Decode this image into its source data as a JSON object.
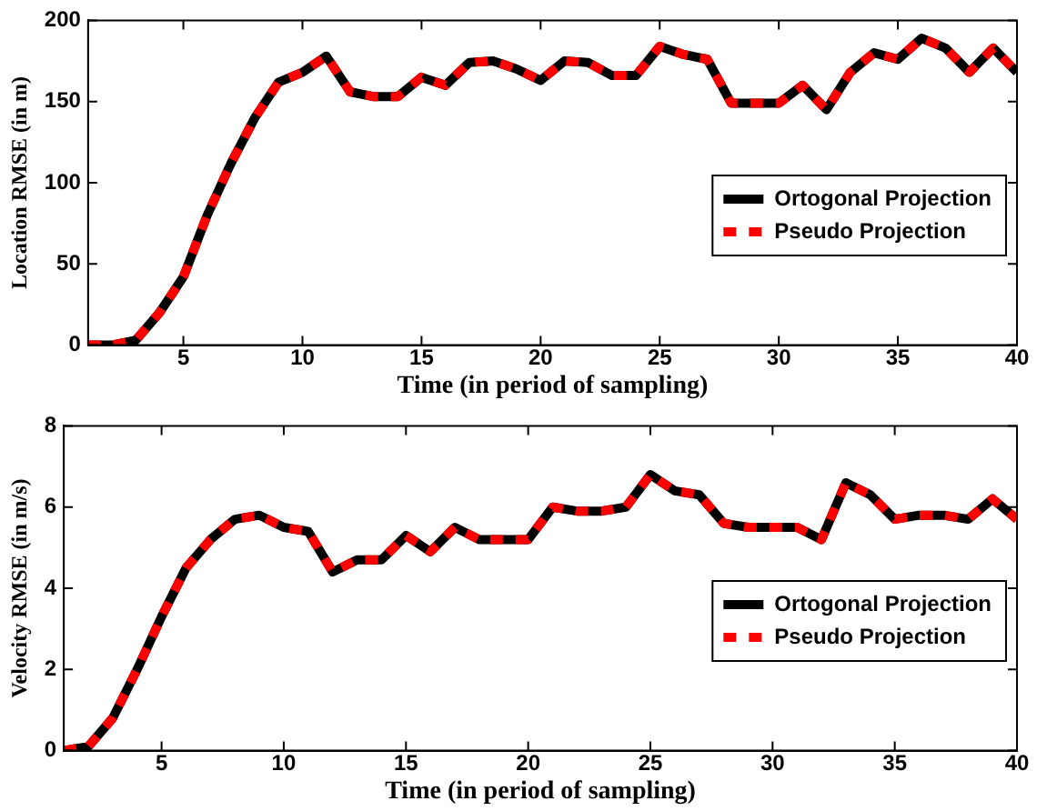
{
  "chart_data": [
    {
      "type": "line",
      "xlabel": "Time (in period of sampling)",
      "ylabel": "Location RMSE (in m)",
      "x": [
        1,
        2,
        3,
        4,
        5,
        6,
        7,
        8,
        9,
        10,
        11,
        12,
        13,
        14,
        15,
        16,
        17,
        18,
        19,
        20,
        21,
        22,
        23,
        24,
        25,
        26,
        27,
        28,
        29,
        30,
        31,
        32,
        33,
        34,
        35,
        36,
        37,
        38,
        39,
        40
      ],
      "series": [
        {
          "name": "Ortogonal Projection",
          "color": "#000000",
          "line_style": "solid",
          "values": [
            0,
            0,
            3,
            20,
            42,
            80,
            112,
            140,
            162,
            168,
            178,
            156,
            153,
            153,
            165,
            160,
            174,
            175,
            170,
            163,
            175,
            174,
            166,
            166,
            184,
            179,
            176,
            149,
            149,
            149,
            160,
            145,
            168,
            180,
            176,
            189,
            183,
            168,
            183,
            168
          ]
        },
        {
          "name": "Pseudo Projection",
          "color": "#ff0000",
          "line_style": "dashed",
          "values": [
            0,
            0,
            3,
            20,
            42,
            80,
            112,
            140,
            162,
            168,
            178,
            156,
            153,
            153,
            165,
            160,
            174,
            175,
            170,
            163,
            175,
            174,
            166,
            166,
            184,
            179,
            176,
            149,
            149,
            149,
            160,
            145,
            168,
            180,
            176,
            189,
            183,
            168,
            183,
            168
          ]
        }
      ],
      "xlim": [
        1,
        40
      ],
      "xticks": [
        5,
        10,
        15,
        20,
        25,
        30,
        35,
        40
      ],
      "ylim": [
        0,
        200
      ],
      "yticks": [
        0,
        50,
        100,
        150,
        200
      ],
      "grid": false,
      "legend": "right",
      "marker": "none"
    },
    {
      "type": "line",
      "xlabel": "Time (in period of sampling)",
      "ylabel": "Velocity RMSE (in m/s)",
      "x": [
        1,
        2,
        3,
        4,
        5,
        6,
        7,
        8,
        9,
        10,
        11,
        12,
        13,
        14,
        15,
        16,
        17,
        18,
        19,
        20,
        21,
        22,
        23,
        24,
        25,
        26,
        27,
        28,
        29,
        30,
        31,
        32,
        33,
        34,
        35,
        36,
        37,
        38,
        39,
        40
      ],
      "series": [
        {
          "name": "Ortogonal Projection",
          "color": "#000000",
          "line_style": "solid",
          "values": [
            0,
            0.1,
            0.8,
            2,
            3.3,
            4.5,
            5.2,
            5.7,
            5.8,
            5.5,
            5.4,
            4.4,
            4.7,
            4.7,
            5.3,
            4.9,
            5.5,
            5.2,
            5.2,
            5.2,
            6,
            5.9,
            5.9,
            6,
            6.8,
            6.4,
            6.3,
            5.6,
            5.5,
            5.5,
            5.5,
            5.2,
            6.6,
            6.3,
            5.7,
            5.8,
            5.8,
            5.7,
            6.2,
            5.7
          ]
        },
        {
          "name": "Pseudo Projection",
          "color": "#ff0000",
          "line_style": "dashed",
          "values": [
            0,
            0.1,
            0.8,
            2,
            3.3,
            4.5,
            5.2,
            5.7,
            5.8,
            5.5,
            5.4,
            4.4,
            4.7,
            4.7,
            5.3,
            4.9,
            5.5,
            5.2,
            5.2,
            5.2,
            6,
            5.9,
            5.9,
            6,
            6.8,
            6.4,
            6.3,
            5.6,
            5.5,
            5.5,
            5.5,
            5.2,
            6.6,
            6.3,
            5.7,
            5.8,
            5.8,
            5.7,
            6.2,
            5.7
          ]
        }
      ],
      "xlim": [
        1,
        40
      ],
      "xticks": [
        5,
        10,
        15,
        20,
        25,
        30,
        35,
        40
      ],
      "ylim": [
        0,
        8
      ],
      "yticks": [
        0,
        2,
        4,
        6,
        8
      ],
      "grid": false,
      "legend": "right",
      "marker": "none"
    }
  ]
}
